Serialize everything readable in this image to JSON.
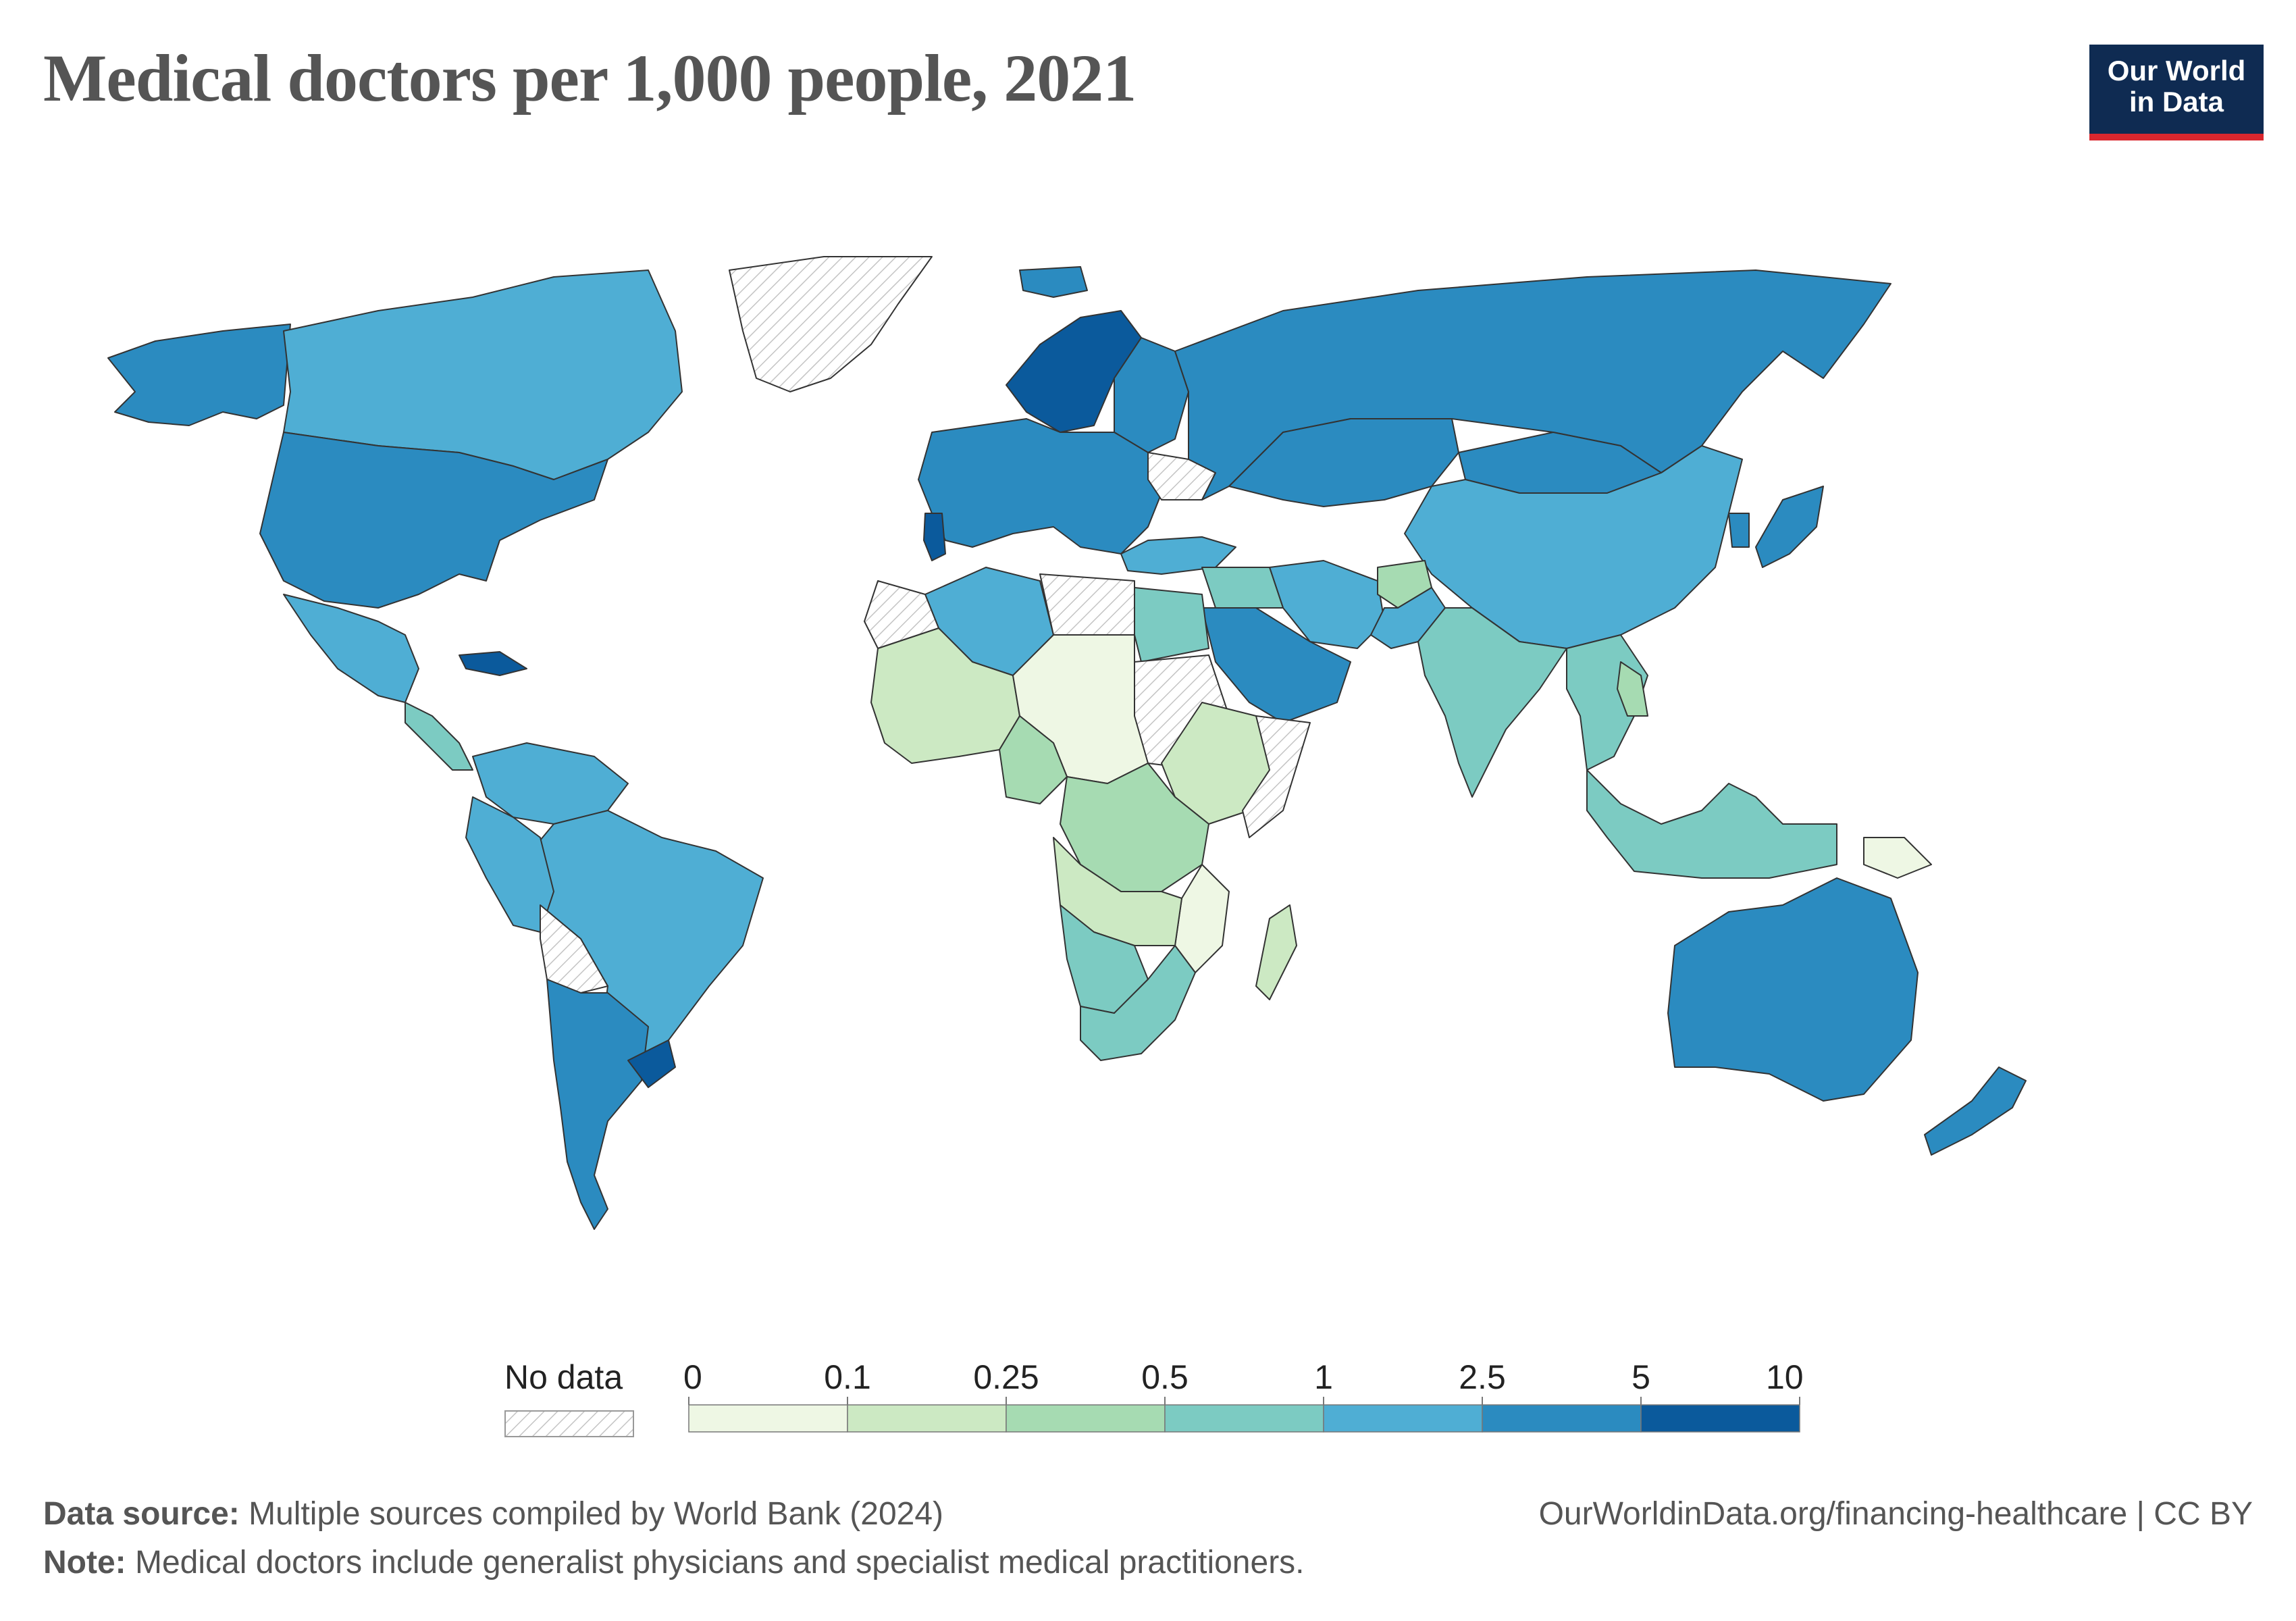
{
  "title": "Medical doctors per 1,000 people, 2021",
  "logo": {
    "line1": "Our World",
    "line2": "in Data",
    "bg": "#0f2b52",
    "accent": "#d9272e"
  },
  "legend": {
    "no_data_label": "No data",
    "ticks": [
      "0",
      "0.1",
      "0.25",
      "0.5",
      "1",
      "2.5",
      "5",
      "10"
    ],
    "bins": [
      {
        "range": "0–0.1",
        "color": "#eef7e4"
      },
      {
        "range": "0.1–0.25",
        "color": "#cce9c3"
      },
      {
        "range": "0.25–0.5",
        "color": "#a6dbb2"
      },
      {
        "range": "0.5–1",
        "color": "#7ccbc2"
      },
      {
        "range": "1–2.5",
        "color": "#4faed4"
      },
      {
        "range": "2.5–5",
        "color": "#2b8bc0"
      },
      {
        "range": "5–10",
        "color": "#0b5a9c"
      }
    ]
  },
  "chart_data": {
    "type": "choropleth",
    "metric": "Medical doctors per 1,000 people",
    "year": "2021",
    "regions": [
      {
        "name": "Alaska / USA",
        "bin": "2.5–5"
      },
      {
        "name": "Canada",
        "bin": "1–2.5"
      },
      {
        "name": "United States",
        "bin": "2.5–5"
      },
      {
        "name": "Greenland",
        "bin": "No data"
      },
      {
        "name": "Mexico",
        "bin": "1–2.5"
      },
      {
        "name": "Cuba",
        "bin": "5–10"
      },
      {
        "name": "Central America",
        "bin": "0.5–1"
      },
      {
        "name": "Colombia / Venezuela",
        "bin": "1–2.5"
      },
      {
        "name": "Brazil",
        "bin": "1–2.5"
      },
      {
        "name": "Peru / Ecuador",
        "bin": "1–2.5"
      },
      {
        "name": "Bolivia",
        "bin": "No data"
      },
      {
        "name": "Argentina / Chile",
        "bin": "2.5–5"
      },
      {
        "name": "Uruguay",
        "bin": "5–10"
      },
      {
        "name": "Iceland",
        "bin": "2.5–5"
      },
      {
        "name": "Norway / Sweden",
        "bin": "5–10"
      },
      {
        "name": "Finland / Baltics",
        "bin": "2.5–5"
      },
      {
        "name": "Western & Central Europe",
        "bin": "2.5–5"
      },
      {
        "name": "Portugal",
        "bin": "5–10"
      },
      {
        "name": "Ukraine",
        "bin": "No data"
      },
      {
        "name": "Russia",
        "bin": "2.5–5"
      },
      {
        "name": "Kazakhstan",
        "bin": "2.5–5"
      },
      {
        "name": "Mongolia",
        "bin": "2.5–5"
      },
      {
        "name": "China",
        "bin": "1–2.5"
      },
      {
        "name": "Japan",
        "bin": "2.5–5"
      },
      {
        "name": "Korea",
        "bin": "2.5–5"
      },
      {
        "name": "Turkey",
        "bin": "1–2.5"
      },
      {
        "name": "Iran",
        "bin": "1–2.5"
      },
      {
        "name": "Saudi Arabia / Gulf",
        "bin": "2.5–5"
      },
      {
        "name": "Iraq / Levant",
        "bin": "0.5–1"
      },
      {
        "name": "Afghanistan",
        "bin": "0.25–0.5"
      },
      {
        "name": "Pakistan",
        "bin": "1–2.5"
      },
      {
        "name": "India",
        "bin": "0.5–1"
      },
      {
        "name": "Southeast Asia",
        "bin": "0.5–1"
      },
      {
        "name": "Laos / Cambodia",
        "bin": "0.25–0.5"
      },
      {
        "name": "Indonesia / Malaysia",
        "bin": "0.5–1"
      },
      {
        "name": "Papua New Guinea",
        "bin": "0–0.1"
      },
      {
        "name": "Australia",
        "bin": "2.5–5"
      },
      {
        "name": "New Zealand",
        "bin": "2.5–5"
      },
      {
        "name": "Algeria",
        "bin": "1–2.5"
      },
      {
        "name": "Libya / Western Sahara",
        "bin": "No data"
      },
      {
        "name": "Egypt",
        "bin": "0.5–1"
      },
      {
        "name": "Sudan",
        "bin": "No data"
      },
      {
        "name": "West Africa",
        "bin": "0.1–0.25"
      },
      {
        "name": "Niger / Chad / CAR",
        "bin": "0–0.1"
      },
      {
        "name": "Nigeria",
        "bin": "0.25–0.5"
      },
      {
        "name": "Ethiopia / East Africa",
        "bin": "0.1–0.25"
      },
      {
        "name": "Somalia",
        "bin": "No data"
      },
      {
        "name": "DR Congo / Tanzania",
        "bin": "0.25–0.5"
      },
      {
        "name": "Mozambique",
        "bin": "0–0.1"
      },
      {
        "name": "Angola / Zambia",
        "bin": "0.1–0.25"
      },
      {
        "name": "Namibia / Botswana",
        "bin": "0.5–1"
      },
      {
        "name": "South Africa",
        "bin": "0.5–1"
      },
      {
        "name": "Madagascar",
        "bin": "0.1–0.25"
      }
    ]
  },
  "footer": {
    "source_label": "Data source:",
    "source_text": "Multiple sources compiled by World Bank (2024)",
    "note_label": "Note:",
    "note_text": "Medical doctors include generalist physicians and specialist medical practitioners.",
    "url": "OurWorldinData.org/financing-healthcare | CC BY"
  }
}
